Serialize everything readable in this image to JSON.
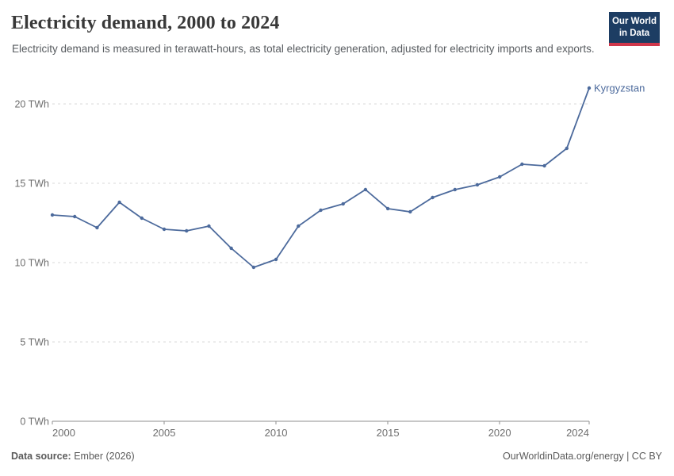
{
  "header": {
    "title": "Electricity demand, 2000 to 2024",
    "subtitle": "Electricity demand is measured in terawatt-hours, as total electricity generation, adjusted for electricity imports and exports.",
    "logo": {
      "line1": "Our World",
      "line2": "in Data"
    }
  },
  "chart_data": {
    "type": "line",
    "title": "Electricity demand, 2000 to 2024",
    "unit": "TWh",
    "x": [
      2000,
      2001,
      2002,
      2003,
      2004,
      2005,
      2006,
      2007,
      2008,
      2009,
      2010,
      2011,
      2012,
      2013,
      2014,
      2015,
      2016,
      2017,
      2018,
      2019,
      2020,
      2021,
      2022,
      2023,
      2024
    ],
    "series": [
      {
        "name": "Kyrgyzstan",
        "color": "#4c6a9c",
        "values": [
          13.0,
          12.9,
          12.2,
          13.8,
          12.8,
          12.1,
          12.0,
          12.3,
          10.9,
          9.7,
          10.2,
          12.3,
          13.3,
          13.7,
          14.6,
          13.4,
          13.2,
          14.1,
          14.6,
          14.9,
          15.4,
          16.2,
          16.1,
          17.2,
          21.0
        ]
      }
    ],
    "xlabel": "",
    "ylabel": "",
    "ylim": [
      0,
      21.2
    ],
    "xlim": [
      2000,
      2024
    ],
    "yticks": [
      0,
      5,
      10,
      15,
      20
    ],
    "ytick_labels": [
      "0 TWh",
      "5 TWh",
      "10 TWh",
      "15 TWh",
      "20 TWh"
    ],
    "xticks": [
      2000,
      2005,
      2010,
      2015,
      2020,
      2024
    ],
    "xtick_labels": [
      "2000",
      "2005",
      "2010",
      "2015",
      "2020",
      "2024"
    ],
    "grid": "horizontal-dashed",
    "legend_position": "end-of-line-label"
  },
  "footer": {
    "source_label": "Data source:",
    "source_value": "Ember (2026)",
    "attribution": "OurWorldinData.org/energy | CC BY"
  },
  "colors": {
    "line": "#4c6a9c",
    "grid": "#d9d9d9",
    "axis": "#8f8f8f",
    "tick_text": "#6e6e6e",
    "logo_bg": "#1d3d63",
    "logo_bar": "#d0374b"
  }
}
